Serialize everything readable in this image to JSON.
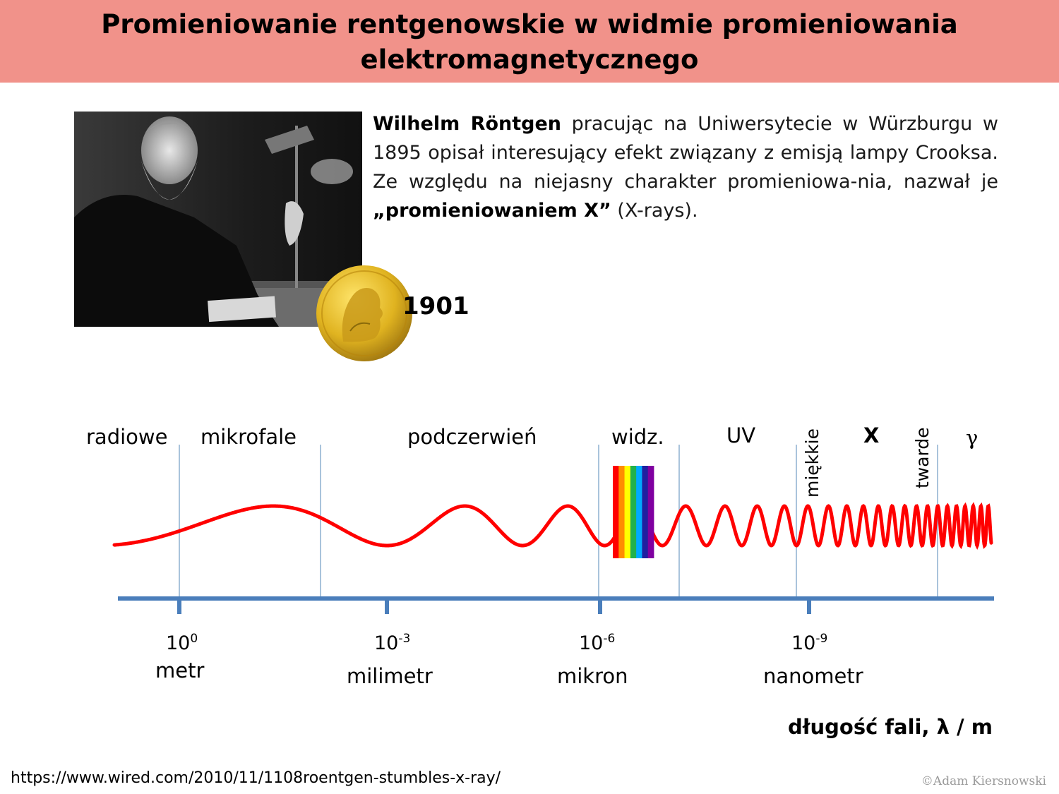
{
  "header": {
    "title_line1": "Promieniowanie rentgenowskie w widmie promieniowania",
    "title_line2": "elektromagnetycznego"
  },
  "intro": {
    "name": "Wilhelm Röntgen",
    "text_part1": " pracując na Uniwersytecie w Würzburgu w 1895 opisał interesujący efekt związany z emisją lampy Crooksa. Ze względu na niejasny charakter promieniowa-nia, nazwał je ",
    "emphasis": "„promieniowaniem X”",
    "text_part2": " (X-rays)."
  },
  "nobel": {
    "year": "1901"
  },
  "spectrum": {
    "bands": {
      "radio": "radiowe",
      "micro": "mikrofale",
      "ir": "podczerwień",
      "visible": "widz.",
      "uv": "UV",
      "x": "X",
      "gamma": "γ",
      "soft": "miękkie",
      "hard": "twarde"
    },
    "ticks": [
      {
        "base": "10",
        "exp": "0",
        "unit": "metr"
      },
      {
        "base": "10",
        "exp": "-3",
        "unit": "milimetr"
      },
      {
        "base": "10",
        "exp": "-6",
        "unit": "mikron"
      },
      {
        "base": "10",
        "exp": "-9",
        "unit": "nanometr"
      }
    ],
    "axis_title": "długość fali, λ / m",
    "colors": {
      "wave": "#ff0000",
      "axis": "#4a7ebb",
      "divider": "#7ba3c8"
    },
    "rainbow": [
      "#ff0000",
      "#ff8c00",
      "#ffff00",
      "#22b14c",
      "#00aaff",
      "#2020a0",
      "#7f00a0"
    ]
  },
  "footer": {
    "source": "https://www.wired.com/2010/11/1108roentgen-stumbles-x-ray/",
    "copyright": "©Adam Kiersnowski"
  }
}
